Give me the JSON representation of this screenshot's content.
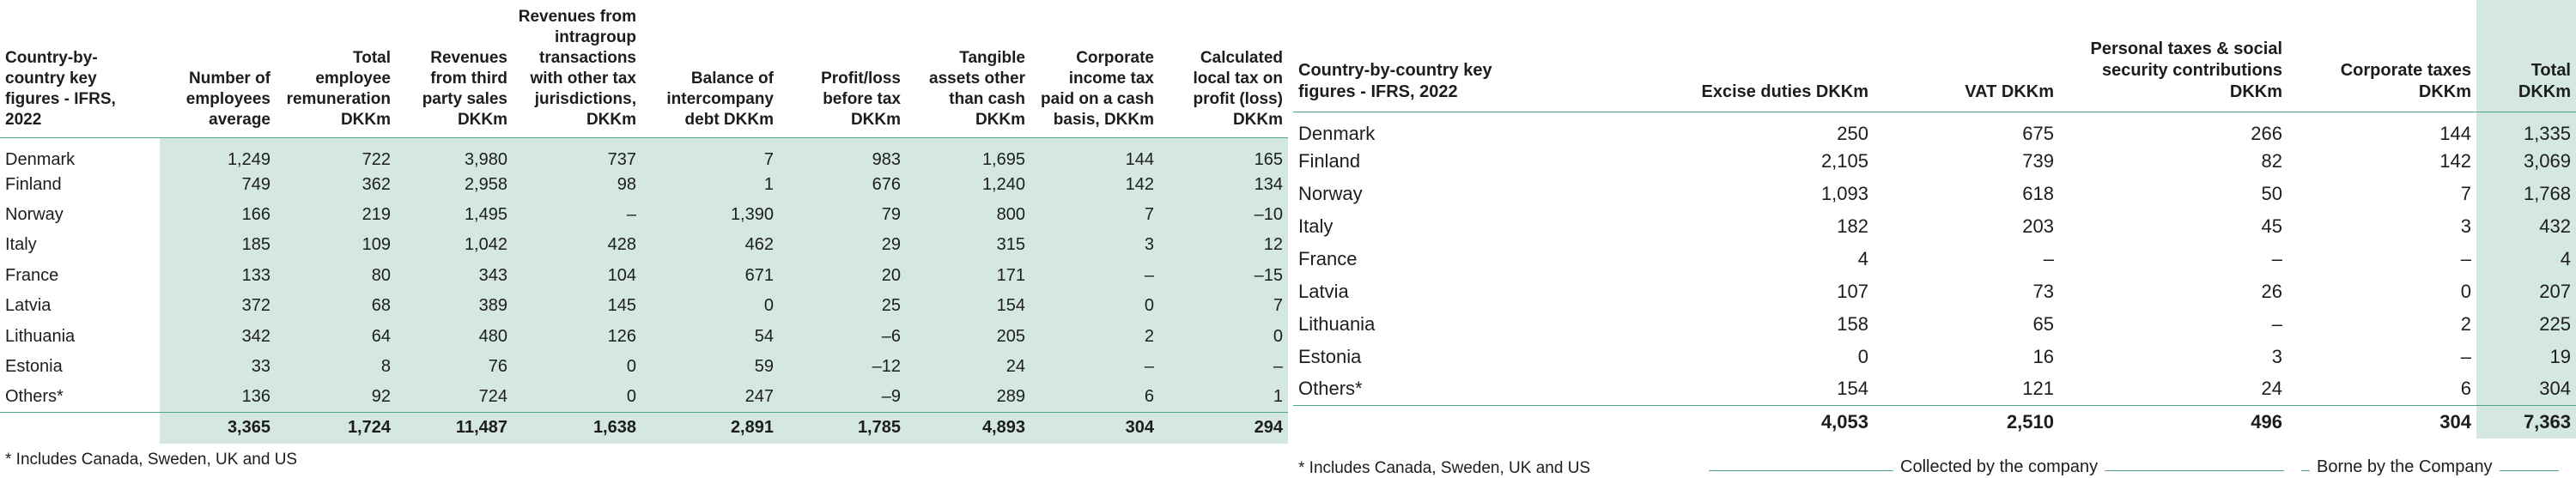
{
  "left_table": {
    "headers": [
      "Country-by-country key figures - IFRS, 2022",
      "Number of employees average",
      "Total employee remuneration DKKm",
      "Revenues from third party sales DKKm",
      "Revenues from intragroup transactions with other tax jurisdictions, DKKm",
      "Balance of intercompany debt DKKm",
      "Profit/loss before tax DKKm",
      "Tangible assets other than cash DKKm",
      "Corporate income tax paid on a cash basis, DKKm",
      "Calculated local tax on profit (loss) DKKm"
    ],
    "rows": [
      [
        "Denmark",
        "1,249",
        "722",
        "3,980",
        "737",
        "7",
        "983",
        "1,695",
        "144",
        "165"
      ],
      [
        "Finland",
        "749",
        "362",
        "2,958",
        "98",
        "1",
        "676",
        "1,240",
        "142",
        "134"
      ],
      [
        "Norway",
        "166",
        "219",
        "1,495",
        "–",
        "1,390",
        "79",
        "800",
        "7",
        "–10"
      ],
      [
        "Italy",
        "185",
        "109",
        "1,042",
        "428",
        "462",
        "29",
        "315",
        "3",
        "12"
      ],
      [
        "France",
        "133",
        "80",
        "343",
        "104",
        "671",
        "20",
        "171",
        "–",
        "–15"
      ],
      [
        "Latvia",
        "372",
        "68",
        "389",
        "145",
        "0",
        "25",
        "154",
        "0",
        "7"
      ],
      [
        "Lithuania",
        "342",
        "64",
        "480",
        "126",
        "54",
        "–6",
        "205",
        "2",
        "0"
      ],
      [
        "Estonia",
        "33",
        "8",
        "76",
        "0",
        "59",
        "–12",
        "24",
        "–",
        "–"
      ],
      [
        "Others*",
        "136",
        "92",
        "724",
        "0",
        "247",
        "–9",
        "289",
        "6",
        "1"
      ]
    ],
    "total": [
      "",
      "3,365",
      "1,724",
      "11,487",
      "1,638",
      "2,891",
      "1,785",
      "4,893",
      "304",
      "294"
    ],
    "footnote": "* Includes Canada, Sweden, UK and US"
  },
  "right_table": {
    "headers": [
      "Country-by-country key figures - IFRS, 2022",
      "Excise duties DKKm",
      "VAT DKKm",
      "Personal taxes & social security contributions DKKm",
      "Corporate taxes DKKm",
      "Total DKKm"
    ],
    "rows": [
      [
        "Denmark",
        "250",
        "675",
        "266",
        "144",
        "1,335"
      ],
      [
        "Finland",
        "2,105",
        "739",
        "82",
        "142",
        "3,069"
      ],
      [
        "Norway",
        "1,093",
        "618",
        "50",
        "7",
        "1,768"
      ],
      [
        "Italy",
        "182",
        "203",
        "45",
        "3",
        "432"
      ],
      [
        "France",
        "4",
        "–",
        "–",
        "–",
        "4"
      ],
      [
        "Latvia",
        "107",
        "73",
        "26",
        "0",
        "207"
      ],
      [
        "Lithuania",
        "158",
        "65",
        "–",
        "2",
        "225"
      ],
      [
        "Estonia",
        "0",
        "16",
        "3",
        "–",
        "19"
      ],
      [
        "Others*",
        "154",
        "121",
        "24",
        "6",
        "304"
      ]
    ],
    "total": [
      "",
      "4,053",
      "2,510",
      "496",
      "304",
      "7,363"
    ],
    "footnote": "* Includes Canada, Sweden, UK and US",
    "legend_collected": "Collected by the company",
    "legend_borne": "Borne by the Company"
  }
}
